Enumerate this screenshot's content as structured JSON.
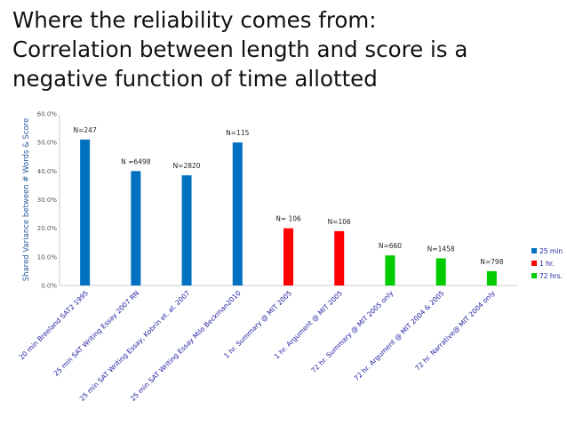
{
  "slide": {
    "title_lines": [
      "Where the reliability comes from:",
      "Correlation between length and score is a",
      "negative function of time allotted"
    ]
  },
  "chart_data": {
    "type": "bar",
    "ylabel": "Shared Variance between # Words & Score",
    "ylim": [
      0,
      60
    ],
    "yticks": [
      "0.0%",
      "10.0%",
      "20.0%",
      "30.0%",
      "40.0%",
      "50.0%",
      "60.0%"
    ],
    "legend_position": "right",
    "grid": false,
    "categories": [
      "20 min Breeland SAT2 1995",
      "25 min SAT Writing Essay 2007 RN",
      "25 min SAT Writing Essay, Kobrin et. al. 2007",
      "25 min SAT Writing Essay Milo Beckman2010",
      "1 hr. Summary @ MIT 2005",
      "1 hr. Argument @ MIT 2005",
      "72 hr. Summary @ MIT 2005 only",
      "72 hr. Argument @ MIT 2004 & 2005",
      "72 hr. Narrative@ MIT 2004 only"
    ],
    "series": [
      {
        "name": "25 min",
        "color": "#0070C0",
        "values": [
          51,
          40,
          38.5,
          50,
          null,
          null,
          null,
          null,
          null
        ]
      },
      {
        "name": "1 hr.",
        "color": "#FF0000",
        "values": [
          null,
          null,
          null,
          null,
          20,
          19,
          null,
          null,
          null
        ]
      },
      {
        "name": "72 hrs.",
        "color": "#00CC00",
        "values": [
          null,
          null,
          null,
          null,
          null,
          null,
          10.5,
          9.5,
          5
        ]
      }
    ],
    "data_labels": [
      "N=247",
      "N =6498",
      "N=2820",
      "N=115",
      "N= 106",
      "N=106",
      "N=660",
      "N=1458",
      "N=798"
    ]
  }
}
